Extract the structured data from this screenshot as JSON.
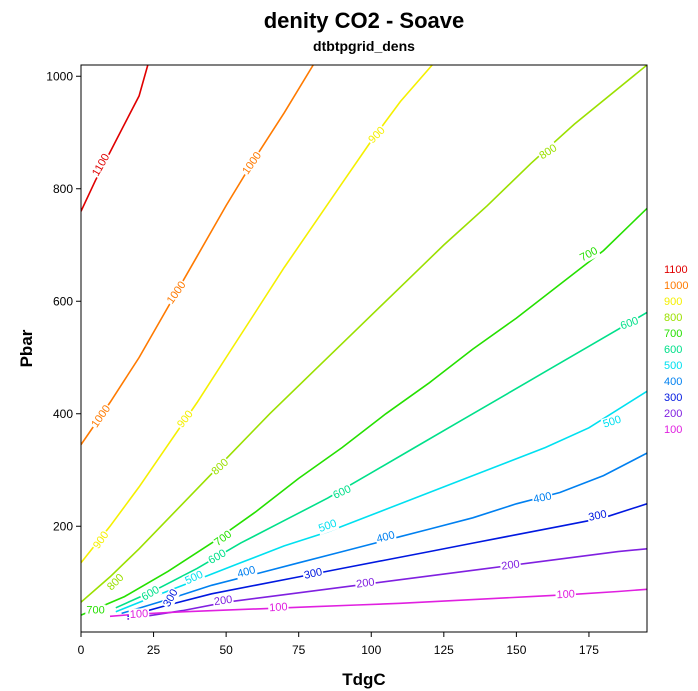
{
  "chart_data": {
    "type": "contour",
    "title": "denity CO2 - Soave",
    "subtitle": "dtbtpgrid_dens",
    "xlabel": "TdgC",
    "ylabel": "Pbar",
    "xlim": [
      0,
      195
    ],
    "ylim": [
      12,
      1020
    ],
    "x_ticks": [
      0,
      25,
      50,
      75,
      100,
      125,
      150,
      175
    ],
    "y_ticks": [
      200,
      400,
      600,
      800,
      1000
    ],
    "grid": false,
    "legend_position": "right",
    "series": [
      {
        "name": "1100",
        "color": "#e00000",
        "points": [
          [
            0,
            760
          ],
          [
            5,
            815
          ],
          [
            10,
            865
          ],
          [
            15,
            915
          ],
          [
            20,
            965
          ],
          [
            23,
            1020
          ]
        ],
        "labels": [
          [
            7,
            842,
            -60
          ]
        ]
      },
      {
        "name": "1000",
        "color": "#ff7a00",
        "points": [
          [
            0,
            345
          ],
          [
            10,
            420
          ],
          [
            20,
            500
          ],
          [
            30,
            590
          ],
          [
            40,
            680
          ],
          [
            50,
            770
          ],
          [
            60,
            855
          ],
          [
            70,
            935
          ],
          [
            80,
            1020
          ]
        ],
        "labels": [
          [
            7,
            395,
            -55
          ],
          [
            33,
            615,
            -55
          ],
          [
            59,
            845,
            -55
          ]
        ]
      },
      {
        "name": "900",
        "color": "#f5f000",
        "points": [
          [
            0,
            135
          ],
          [
            10,
            200
          ],
          [
            20,
            270
          ],
          [
            30,
            345
          ],
          [
            40,
            420
          ],
          [
            50,
            500
          ],
          [
            60,
            580
          ],
          [
            70,
            660
          ],
          [
            80,
            735
          ],
          [
            90,
            810
          ],
          [
            100,
            885
          ],
          [
            110,
            955
          ],
          [
            121,
            1020
          ]
        ],
        "labels": [
          [
            7,
            175,
            -55
          ],
          [
            36,
            390,
            -52
          ],
          [
            102,
            895,
            -45
          ]
        ]
      },
      {
        "name": "800",
        "color": "#9be000",
        "points": [
          [
            0,
            65
          ],
          [
            10,
            110
          ],
          [
            20,
            160
          ],
          [
            35,
            240
          ],
          [
            50,
            320
          ],
          [
            65,
            400
          ],
          [
            80,
            475
          ],
          [
            95,
            550
          ],
          [
            110,
            625
          ],
          [
            125,
            700
          ],
          [
            140,
            770
          ],
          [
            155,
            845
          ],
          [
            170,
            915
          ],
          [
            195,
            1020
          ]
        ],
        "labels": [
          [
            12,
            100,
            -45
          ],
          [
            48,
            305,
            -42
          ],
          [
            161,
            865,
            -33
          ]
        ]
      },
      {
        "name": "700",
        "color": "#25e000",
        "points": [
          [
            0,
            42
          ],
          [
            15,
            75
          ],
          [
            30,
            120
          ],
          [
            45,
            170
          ],
          [
            60,
            225
          ],
          [
            75,
            285
          ],
          [
            90,
            340
          ],
          [
            105,
            400
          ],
          [
            120,
            455
          ],
          [
            135,
            515
          ],
          [
            150,
            570
          ],
          [
            165,
            630
          ],
          [
            180,
            690
          ],
          [
            195,
            765
          ]
        ],
        "labels": [
          [
            5,
            50,
            0
          ],
          [
            49,
            178,
            -36
          ],
          [
            175,
            683,
            -28
          ]
        ]
      },
      {
        "name": "600",
        "color": "#00e08a",
        "points": [
          [
            12,
            55
          ],
          [
            25,
            85
          ],
          [
            40,
            125
          ],
          [
            55,
            170
          ],
          [
            70,
            210
          ],
          [
            85,
            250
          ],
          [
            100,
            295
          ],
          [
            115,
            340
          ],
          [
            130,
            385
          ],
          [
            145,
            430
          ],
          [
            160,
            475
          ],
          [
            175,
            520
          ],
          [
            195,
            580
          ]
        ],
        "labels": [
          [
            24,
            80,
            -30
          ],
          [
            47,
            145,
            -30
          ],
          [
            90,
            260,
            -25
          ],
          [
            189,
            560,
            -20
          ]
        ]
      },
      {
        "name": "500",
        "color": "#00e0f0",
        "points": [
          [
            12,
            48
          ],
          [
            25,
            75
          ],
          [
            40,
            105
          ],
          [
            55,
            135
          ],
          [
            70,
            165
          ],
          [
            85,
            190
          ],
          [
            100,
            220
          ],
          [
            115,
            250
          ],
          [
            130,
            280
          ],
          [
            145,
            310
          ],
          [
            160,
            340
          ],
          [
            175,
            375
          ],
          [
            195,
            440
          ]
        ],
        "labels": [
          [
            39,
            108,
            -25
          ],
          [
            85,
            200,
            -20
          ],
          [
            183,
            385,
            -18
          ]
        ]
      },
      {
        "name": "400",
        "color": "#0080f0",
        "points": [
          [
            14,
            45
          ],
          [
            30,
            70
          ],
          [
            45,
            95
          ],
          [
            60,
            115
          ],
          [
            75,
            135
          ],
          [
            90,
            155
          ],
          [
            105,
            175
          ],
          [
            120,
            195
          ],
          [
            135,
            215
          ],
          [
            150,
            240
          ],
          [
            165,
            260
          ],
          [
            180,
            290
          ],
          [
            195,
            330
          ]
        ],
        "labels": [
          [
            57,
            118,
            -15
          ],
          [
            105,
            180,
            -15
          ],
          [
            159,
            250,
            -12
          ]
        ]
      },
      {
        "name": "300",
        "color": "#0018e0",
        "points": [
          [
            16,
            40
          ],
          [
            30,
            60
          ],
          [
            45,
            80
          ],
          [
            60,
            95
          ],
          [
            75,
            110
          ],
          [
            90,
            125
          ],
          [
            105,
            140
          ],
          [
            120,
            155
          ],
          [
            135,
            170
          ],
          [
            150,
            185
          ],
          [
            165,
            200
          ],
          [
            180,
            215
          ],
          [
            195,
            240
          ]
        ],
        "labels": [
          [
            31,
            72,
            -60
          ],
          [
            80,
            115,
            -12
          ],
          [
            178,
            218,
            -12
          ]
        ]
      },
      {
        "name": "200",
        "color": "#8020e0",
        "points": [
          [
            16,
            35
          ],
          [
            35,
            50
          ],
          [
            50,
            65
          ],
          [
            65,
            75
          ],
          [
            80,
            85
          ],
          [
            95,
            95
          ],
          [
            110,
            105
          ],
          [
            125,
            115
          ],
          [
            140,
            125
          ],
          [
            155,
            135
          ],
          [
            170,
            145
          ],
          [
            185,
            155
          ],
          [
            195,
            160
          ]
        ],
        "labels": [
          [
            49,
            67,
            -8
          ],
          [
            98,
            98,
            -8
          ],
          [
            148,
            130,
            -8
          ]
        ]
      },
      {
        "name": "100",
        "color": "#e020e0",
        "points": [
          [
            10,
            40
          ],
          [
            20,
            44
          ],
          [
            35,
            48
          ],
          [
            50,
            51
          ],
          [
            65,
            54
          ],
          [
            80,
            57
          ],
          [
            95,
            60
          ],
          [
            110,
            63
          ],
          [
            125,
            67
          ],
          [
            140,
            71
          ],
          [
            155,
            75
          ],
          [
            170,
            79
          ],
          [
            185,
            84
          ],
          [
            195,
            88
          ]
        ],
        "labels": [
          [
            20,
            43,
            -3
          ],
          [
            68,
            55,
            -3
          ],
          [
            167,
            78,
            -3
          ]
        ]
      }
    ]
  }
}
